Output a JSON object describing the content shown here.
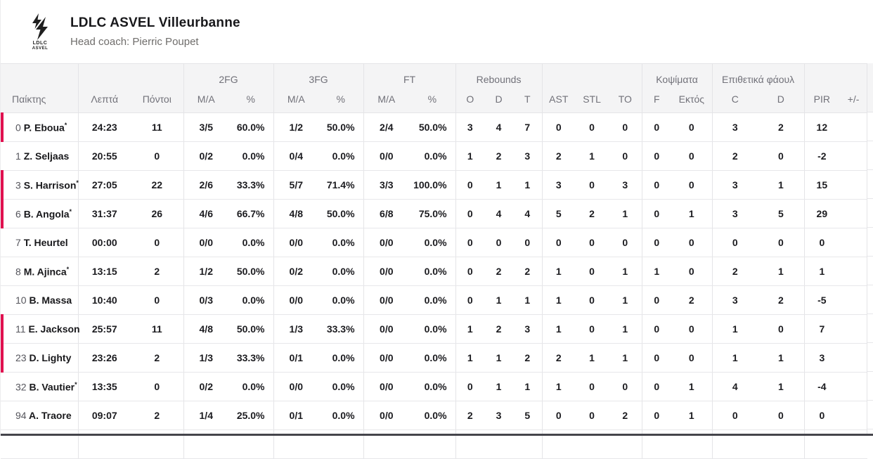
{
  "colors": {
    "accent_red": "#e0104f",
    "header_bg": "#f4f4f5",
    "header_text": "#717179"
  },
  "team": {
    "name": "LDLC ASVEL Villeurbanne",
    "coach": "Head coach: Pierric Poupet",
    "logo_line1": "LDLC",
    "logo_line2": "ASVEL"
  },
  "table": {
    "head": {
      "player": "Παίκτης",
      "minutes": "Λεπτά",
      "points": "Πόντοι",
      "group_2fg": "2FG",
      "group_3fg": "3FG",
      "group_ft": "FT",
      "group_rebounds": "Rebounds",
      "group_blocks": "Κοψίματα",
      "group_fouls": "Επιθετικά φάουλ",
      "ma": "M/A",
      "pct": "%",
      "reb_o": "O",
      "reb_d": "D",
      "reb_t": "T",
      "ast": "AST",
      "stl": "STL",
      "to": "TO",
      "blocks_f": "F",
      "blocks_against": "Εκτός",
      "fouls_c": "C",
      "fouls_d": "D",
      "pir": "PIR",
      "plus_minus": "+/-"
    },
    "players": [
      {
        "number": "0",
        "name": "P. Eboua",
        "starter": true,
        "on_court": true,
        "min": "24:23",
        "pts": "11",
        "fg2": "3/5",
        "fg2_pct": "60.0%",
        "fg3": "1/2",
        "fg3_pct": "50.0%",
        "ft": "2/4",
        "ft_pct": "50.0%",
        "reb_o": "3",
        "reb_d": "4",
        "reb_t": "7",
        "ast": "0",
        "stl": "0",
        "to": "0",
        "f": "0",
        "f_out": "0",
        "foul_c": "3",
        "foul_d": "2",
        "pir": "12",
        "pm": ""
      },
      {
        "number": "1",
        "name": "Z. Seljaas",
        "starter": false,
        "on_court": false,
        "min": "20:55",
        "pts": "0",
        "fg2": "0/2",
        "fg2_pct": "0.0%",
        "fg3": "0/4",
        "fg3_pct": "0.0%",
        "ft": "0/0",
        "ft_pct": "0.0%",
        "reb_o": "1",
        "reb_d": "2",
        "reb_t": "3",
        "ast": "2",
        "stl": "1",
        "to": "0",
        "f": "0",
        "f_out": "0",
        "foul_c": "2",
        "foul_d": "0",
        "pir": "-2",
        "pm": ""
      },
      {
        "number": "3",
        "name": "S. Harrison",
        "starter": true,
        "on_court": true,
        "min": "27:05",
        "pts": "22",
        "fg2": "2/6",
        "fg2_pct": "33.3%",
        "fg3": "5/7",
        "fg3_pct": "71.4%",
        "ft": "3/3",
        "ft_pct": "100.0%",
        "reb_o": "0",
        "reb_d": "1",
        "reb_t": "1",
        "ast": "3",
        "stl": "0",
        "to": "3",
        "f": "0",
        "f_out": "0",
        "foul_c": "3",
        "foul_d": "1",
        "pir": "15",
        "pm": ""
      },
      {
        "number": "6",
        "name": "B. Angola",
        "starter": true,
        "on_court": true,
        "min": "31:37",
        "pts": "26",
        "fg2": "4/6",
        "fg2_pct": "66.7%",
        "fg3": "4/8",
        "fg3_pct": "50.0%",
        "ft": "6/8",
        "ft_pct": "75.0%",
        "reb_o": "0",
        "reb_d": "4",
        "reb_t": "4",
        "ast": "5",
        "stl": "2",
        "to": "1",
        "f": "0",
        "f_out": "1",
        "foul_c": "3",
        "foul_d": "5",
        "pir": "29",
        "pm": ""
      },
      {
        "number": "7",
        "name": "T. Heurtel",
        "starter": false,
        "on_court": false,
        "min": "00:00",
        "pts": "0",
        "fg2": "0/0",
        "fg2_pct": "0.0%",
        "fg3": "0/0",
        "fg3_pct": "0.0%",
        "ft": "0/0",
        "ft_pct": "0.0%",
        "reb_o": "0",
        "reb_d": "0",
        "reb_t": "0",
        "ast": "0",
        "stl": "0",
        "to": "0",
        "f": "0",
        "f_out": "0",
        "foul_c": "0",
        "foul_d": "0",
        "pir": "0",
        "pm": ""
      },
      {
        "number": "8",
        "name": "M. Ajinca",
        "starter": true,
        "on_court": false,
        "min": "13:15",
        "pts": "2",
        "fg2": "1/2",
        "fg2_pct": "50.0%",
        "fg3": "0/2",
        "fg3_pct": "0.0%",
        "ft": "0/0",
        "ft_pct": "0.0%",
        "reb_o": "0",
        "reb_d": "2",
        "reb_t": "2",
        "ast": "1",
        "stl": "0",
        "to": "1",
        "f": "1",
        "f_out": "0",
        "foul_c": "2",
        "foul_d": "1",
        "pir": "1",
        "pm": ""
      },
      {
        "number": "10",
        "name": "B. Massa",
        "starter": false,
        "on_court": false,
        "min": "10:40",
        "pts": "0",
        "fg2": "0/3",
        "fg2_pct": "0.0%",
        "fg3": "0/0",
        "fg3_pct": "0.0%",
        "ft": "0/0",
        "ft_pct": "0.0%",
        "reb_o": "0",
        "reb_d": "1",
        "reb_t": "1",
        "ast": "1",
        "stl": "0",
        "to": "1",
        "f": "0",
        "f_out": "2",
        "foul_c": "3",
        "foul_d": "2",
        "pir": "-5",
        "pm": ""
      },
      {
        "number": "11",
        "name": "E. Jackson",
        "starter": false,
        "on_court": true,
        "min": "25:57",
        "pts": "11",
        "fg2": "4/8",
        "fg2_pct": "50.0%",
        "fg3": "1/3",
        "fg3_pct": "33.3%",
        "ft": "0/0",
        "ft_pct": "0.0%",
        "reb_o": "1",
        "reb_d": "2",
        "reb_t": "3",
        "ast": "1",
        "stl": "0",
        "to": "1",
        "f": "0",
        "f_out": "0",
        "foul_c": "1",
        "foul_d": "0",
        "pir": "7",
        "pm": ""
      },
      {
        "number": "23",
        "name": "D. Lighty",
        "starter": false,
        "on_court": true,
        "min": "23:26",
        "pts": "2",
        "fg2": "1/3",
        "fg2_pct": "33.3%",
        "fg3": "0/1",
        "fg3_pct": "0.0%",
        "ft": "0/0",
        "ft_pct": "0.0%",
        "reb_o": "1",
        "reb_d": "1",
        "reb_t": "2",
        "ast": "2",
        "stl": "1",
        "to": "1",
        "f": "0",
        "f_out": "0",
        "foul_c": "1",
        "foul_d": "1",
        "pir": "3",
        "pm": ""
      },
      {
        "number": "32",
        "name": "B. Vautier",
        "starter": true,
        "on_court": false,
        "min": "13:35",
        "pts": "0",
        "fg2": "0/2",
        "fg2_pct": "0.0%",
        "fg3": "0/0",
        "fg3_pct": "0.0%",
        "ft": "0/0",
        "ft_pct": "0.0%",
        "reb_o": "0",
        "reb_d": "1",
        "reb_t": "1",
        "ast": "1",
        "stl": "0",
        "to": "0",
        "f": "0",
        "f_out": "1",
        "foul_c": "4",
        "foul_d": "1",
        "pir": "-4",
        "pm": ""
      },
      {
        "number": "94",
        "name": "A. Traore",
        "starter": false,
        "on_court": false,
        "min": "09:07",
        "pts": "2",
        "fg2": "1/4",
        "fg2_pct": "25.0%",
        "fg3": "0/1",
        "fg3_pct": "0.0%",
        "ft": "0/0",
        "ft_pct": "0.0%",
        "reb_o": "2",
        "reb_d": "3",
        "reb_t": "5",
        "ast": "0",
        "stl": "0",
        "to": "2",
        "f": "0",
        "f_out": "1",
        "foul_c": "0",
        "foul_d": "0",
        "pir": "0",
        "pm": ""
      }
    ]
  }
}
